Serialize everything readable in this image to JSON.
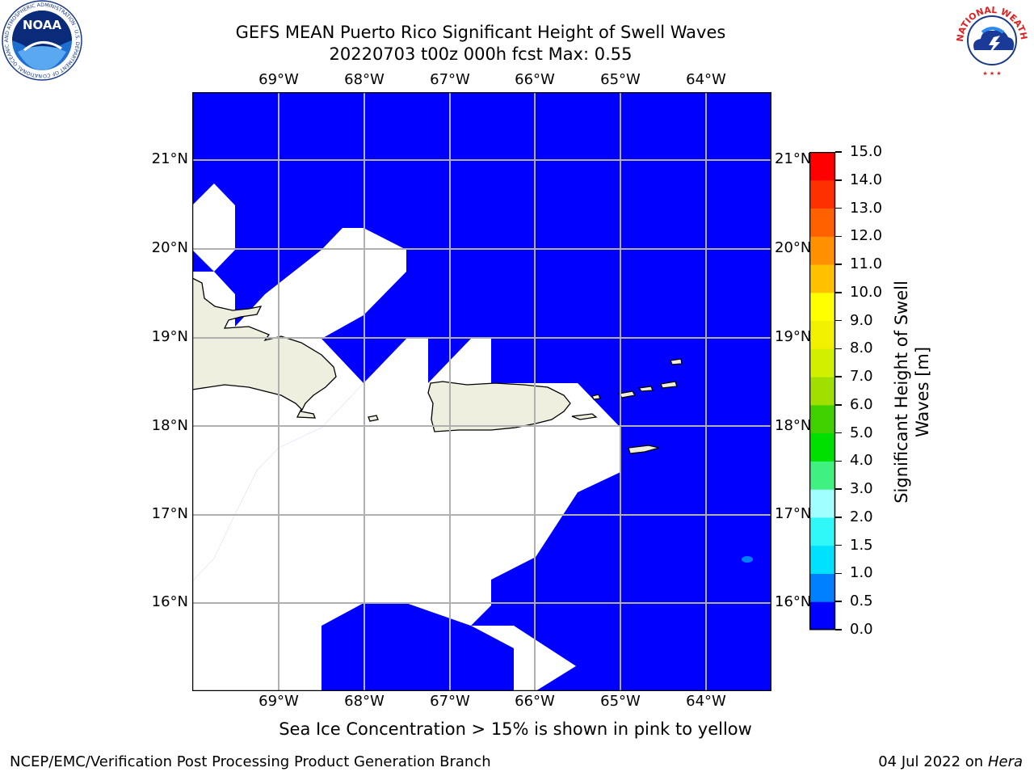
{
  "header": {
    "title_line1": "GEFS MEAN Puerto Rico Significant Height of Swell Waves",
    "title_line2": "20220703 t00z 000h fcst   Max: 0.55"
  },
  "map": {
    "lon_ticks": [
      "69°W",
      "68°W",
      "67°W",
      "66°W",
      "65°W",
      "64°W"
    ],
    "lat_ticks": [
      "21°N",
      "20°N",
      "19°N",
      "18°N",
      "17°N",
      "16°N"
    ],
    "ocean_color": "#0000ff",
    "land_color": "#efefdf",
    "missing_color": "#ffffff",
    "grid_color": "#b0b0b0"
  },
  "colorbar": {
    "title": "Significant Height of Swell Waves [m]",
    "title_line1": "Significant Height of Swell",
    "title_line2": "Waves [m]",
    "levels": [
      "0.0",
      "0.5",
      "1.0",
      "1.5",
      "2.0",
      "3.0",
      "4.0",
      "5.0",
      "6.0",
      "7.0",
      "8.0",
      "9.0",
      "10.0",
      "11.0",
      "12.0",
      "13.0",
      "14.0",
      "15.0"
    ],
    "colors": [
      "#0000ff",
      "#0080ff",
      "#00e0ff",
      "#30f8f8",
      "#a0ffff",
      "#40f080",
      "#00e000",
      "#40d000",
      "#a0e000",
      "#d0f000",
      "#f0f000",
      "#ffff00",
      "#ffc000",
      "#ff9000",
      "#ff6000",
      "#ff3000",
      "#ff0000"
    ]
  },
  "note": "Sea Ice Concentration > 15% is shown in pink to yellow",
  "footer": {
    "left": "NCEP/EMC/Verification Post Processing Product Generation Branch",
    "date": "04 Jul 2022 on ",
    "host": "Hera"
  },
  "logos": {
    "noaa_text": "NOAA",
    "noaa_ring": "NATIONAL OCEANIC AND ATMOSPHERIC ADMINISTRATION · U.S. DEPARTMENT OF COMMERCE",
    "nws_ring": "NATIONAL WEATHER SERVICE"
  }
}
